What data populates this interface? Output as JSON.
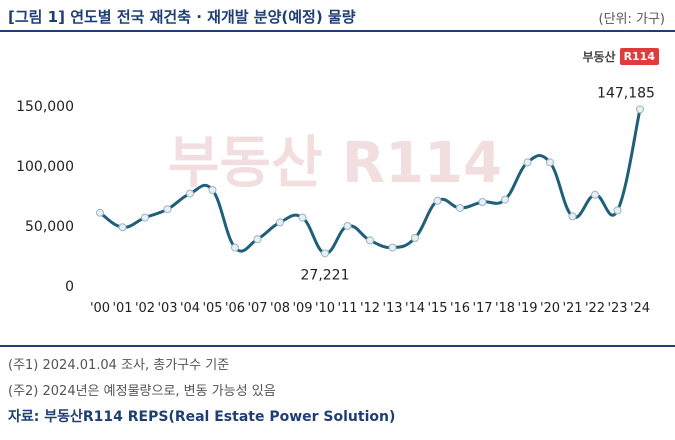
{
  "header": {
    "title": "[그림 1] 연도별 전국 재건축 · 재개발 분양(예정) 물량",
    "unit": "(단위: 가구)"
  },
  "logo": {
    "text": "부동산",
    "badge": "R114",
    "watermark": "부동산 R114"
  },
  "notes": {
    "note1": "(주1) 2024.01.04 조사, 총가구수 기준",
    "note2": "(주2) 2024년은 예정물량으로, 변동 가능성 있음"
  },
  "source": "자료: 부동산R114 REPS(Real Estate Power Solution)",
  "chart_data": {
    "type": "line",
    "title": "",
    "xlabel": "",
    "ylabel": "",
    "ylim": [
      0,
      150000
    ],
    "yticks": [
      "0",
      "50,000",
      "100,000",
      "150,000"
    ],
    "categories": [
      "'00",
      "'01",
      "'02",
      "'03",
      "'04",
      "'05",
      "'06",
      "'07",
      "'08",
      "'09",
      "'10",
      "'11",
      "'12",
      "'13",
      "'14",
      "'15",
      "'16",
      "'17",
      "'18",
      "'19",
      "'20",
      "'21",
      "'22",
      "'23",
      "'24"
    ],
    "values": [
      61000,
      49000,
      57000,
      64000,
      77000,
      80000,
      32000,
      39000,
      53000,
      57000,
      27221,
      50000,
      38000,
      32000,
      40000,
      71000,
      65000,
      70000,
      72000,
      103000,
      103000,
      58000,
      76000,
      63000,
      147185
    ],
    "data_labels": [
      {
        "index": 10,
        "text": "27,221"
      },
      {
        "index": 24,
        "text": "147,185"
      }
    ],
    "line_color": "#1f5f7a",
    "marker_fill": "#e6f0f5",
    "grid": false
  }
}
